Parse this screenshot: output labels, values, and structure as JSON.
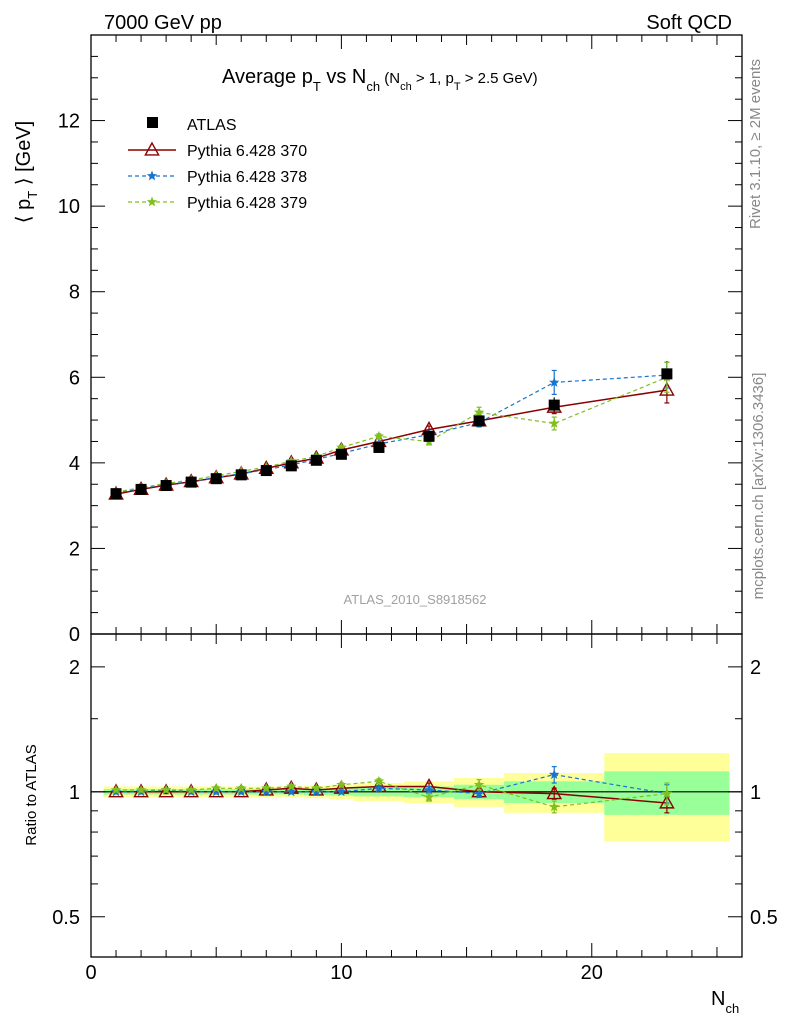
{
  "header": {
    "left": "7000 GeV pp",
    "right": "Soft QCD"
  },
  "side": {
    "rivet": "Rivet 3.1.10, ≥ 2M events",
    "mcplots": "mcplots.cern.ch [arXiv:1306.3436]"
  },
  "watermark": "ATLAS_2010_S8918562",
  "colors": {
    "atlas": "#000000",
    "p370": "#8b0000",
    "p378": "#1874cd",
    "p379": "#7fbf1f",
    "band_inner": "#99ff99",
    "band_outer": "#ffff99"
  },
  "chart_data": [
    {
      "type": "line",
      "title_parts": {
        "a": "Average p",
        "a_sub": "T",
        "b": " vs N",
        "b_sub": "ch",
        "c": " (N",
        "c_sub": "ch",
        "d": " > 1, p",
        "d_sub": "T",
        "e": " > 2.5 GeV)"
      },
      "ylabel_parts": {
        "a": "⟨ p",
        "a_sub": "T",
        "b": " ⟩  [GeV]"
      },
      "xlim": [
        0,
        26
      ],
      "ylim": [
        0,
        14
      ],
      "yticks": [
        0,
        2,
        4,
        6,
        8,
        10,
        12
      ],
      "ytick_labels": [
        "0",
        "2",
        "4",
        "6",
        "8",
        "10",
        "12"
      ],
      "legend_position": "top-left",
      "x": [
        1,
        2,
        3,
        4,
        5,
        6,
        7,
        8,
        9,
        10,
        11.5,
        13.5,
        15.5,
        18.5,
        23
      ],
      "atlas": {
        "name": "ATLAS",
        "values": [
          3.28,
          3.38,
          3.47,
          3.55,
          3.63,
          3.72,
          3.82,
          3.93,
          4.06,
          4.2,
          4.36,
          4.62,
          4.98,
          5.35,
          6.08
        ],
        "errors": [
          0.05,
          0.05,
          0.05,
          0.05,
          0.05,
          0.05,
          0.05,
          0.05,
          0.06,
          0.06,
          0.07,
          0.08,
          0.12,
          0.18,
          0.3
        ]
      },
      "series": [
        {
          "name": "Pythia 6.428 370",
          "values": [
            3.27,
            3.38,
            3.48,
            3.56,
            3.65,
            3.74,
            3.87,
            4.0,
            4.11,
            4.3,
            4.5,
            4.78,
            4.98,
            5.3,
            5.7
          ],
          "errors": [
            0.02,
            0.02,
            0.02,
            0.02,
            0.02,
            0.03,
            0.03,
            0.03,
            0.04,
            0.05,
            0.06,
            0.08,
            0.1,
            0.15,
            0.3
          ]
        },
        {
          "name": "Pythia 6.428 378",
          "values": [
            3.3,
            3.4,
            3.5,
            3.56,
            3.66,
            3.75,
            3.84,
            3.95,
            4.08,
            4.22,
            4.44,
            4.66,
            4.94,
            5.88,
            6.05
          ],
          "errors": [
            0.02,
            0.02,
            0.02,
            0.02,
            0.02,
            0.03,
            0.03,
            0.03,
            0.04,
            0.05,
            0.06,
            0.08,
            0.1,
            0.28,
            0.3
          ]
        },
        {
          "name": "Pythia 6.428 379",
          "values": [
            3.32,
            3.42,
            3.52,
            3.6,
            3.7,
            3.8,
            3.9,
            4.04,
            4.15,
            4.36,
            4.62,
            4.5,
            5.18,
            4.92,
            6.0
          ],
          "errors": [
            0.02,
            0.02,
            0.02,
            0.02,
            0.02,
            0.03,
            0.03,
            0.03,
            0.04,
            0.05,
            0.06,
            0.08,
            0.12,
            0.15,
            0.35
          ]
        }
      ]
    },
    {
      "type": "line",
      "ylabel": "Ratio to ATLAS",
      "xlabel_parts": {
        "a": "N",
        "a_sub": "ch"
      },
      "xlim": [
        0,
        26
      ],
      "ylim": [
        0.4,
        2.4
      ],
      "log_y": true,
      "xticks": [
        0,
        10,
        20
      ],
      "xtick_labels": [
        "0",
        "10",
        "20"
      ],
      "yticks": [
        0.5,
        1,
        2
      ],
      "ytick_labels": [
        "0.5",
        "1",
        "2"
      ],
      "bins": [
        [
          0.5,
          1.5
        ],
        [
          1.5,
          2.5
        ],
        [
          2.5,
          3.5
        ],
        [
          3.5,
          4.5
        ],
        [
          4.5,
          5.5
        ],
        [
          5.5,
          6.5
        ],
        [
          6.5,
          7.5
        ],
        [
          7.5,
          8.5
        ],
        [
          8.5,
          9.5
        ],
        [
          9.5,
          10.5
        ],
        [
          10.5,
          12.5
        ],
        [
          12.5,
          14.5
        ],
        [
          14.5,
          16.5
        ],
        [
          16.5,
          20.5
        ],
        [
          20.5,
          25.5
        ]
      ],
      "band_inner": [
        0.015,
        0.015,
        0.015,
        0.015,
        0.015,
        0.015,
        0.015,
        0.015,
        0.018,
        0.02,
        0.025,
        0.03,
        0.04,
        0.06,
        0.12
      ],
      "band_outer": [
        0.03,
        0.03,
        0.03,
        0.03,
        0.03,
        0.03,
        0.03,
        0.03,
        0.035,
        0.04,
        0.05,
        0.06,
        0.08,
        0.11,
        0.24
      ],
      "series": [
        {
          "name": "Pythia 6.428 370",
          "values": [
            1.0,
            1.0,
            1.0,
            1.0,
            1.0,
            1.0,
            1.01,
            1.02,
            1.01,
            1.02,
            1.03,
            1.03,
            1.0,
            0.99,
            0.94
          ],
          "errors": [
            0.01,
            0.01,
            0.01,
            0.01,
            0.01,
            0.01,
            0.01,
            0.01,
            0.01,
            0.01,
            0.015,
            0.02,
            0.02,
            0.03,
            0.05
          ]
        },
        {
          "name": "Pythia 6.428 378",
          "values": [
            1.0,
            1.0,
            1.01,
            1.0,
            1.0,
            1.0,
            1.0,
            1.0,
            1.0,
            1.0,
            1.02,
            1.01,
            0.99,
            1.1,
            0.99
          ],
          "errors": [
            0.01,
            0.01,
            0.01,
            0.01,
            0.01,
            0.01,
            0.01,
            0.01,
            0.01,
            0.01,
            0.015,
            0.02,
            0.02,
            0.05,
            0.05
          ]
        },
        {
          "name": "Pythia 6.428 379",
          "values": [
            1.01,
            1.01,
            1.01,
            1.01,
            1.02,
            1.02,
            1.02,
            1.03,
            1.02,
            1.04,
            1.06,
            0.97,
            1.04,
            0.92,
            0.99
          ],
          "errors": [
            0.01,
            0.01,
            0.01,
            0.01,
            0.01,
            0.01,
            0.01,
            0.01,
            0.01,
            0.01,
            0.015,
            0.02,
            0.03,
            0.03,
            0.06
          ]
        }
      ]
    }
  ]
}
